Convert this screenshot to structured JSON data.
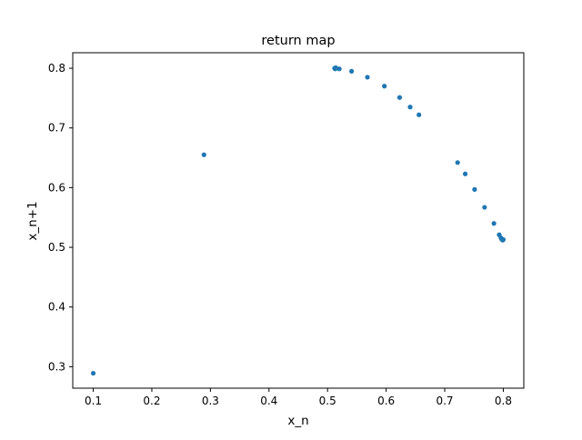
{
  "chart_data": {
    "type": "scatter",
    "title": "return map",
    "xlabel": "x_n",
    "ylabel": "x_n+1",
    "xlim": [
      0.065,
      0.835
    ],
    "ylim": [
      0.264,
      0.826
    ],
    "xticks": [
      0.1,
      0.2,
      0.3,
      0.4,
      0.5,
      0.6,
      0.7,
      0.8
    ],
    "yticks": [
      0.3,
      0.4,
      0.5,
      0.6,
      0.7,
      0.8
    ],
    "xtick_labels": [
      "0.1",
      "0.2",
      "0.3",
      "0.4",
      "0.5",
      "0.6",
      "0.7",
      "0.8"
    ],
    "ytick_labels": [
      "0.3",
      "0.4",
      "0.5",
      "0.6",
      "0.7",
      "0.8"
    ],
    "grid": false,
    "marker_color": "#1f77b4",
    "series": [
      {
        "x": [
          0.1,
          0.289,
          0.512,
          0.513,
          0.514,
          0.52,
          0.541,
          0.568,
          0.597,
          0.623,
          0.641,
          0.656,
          0.722,
          0.735,
          0.751,
          0.768,
          0.784,
          0.793,
          0.796,
          0.797,
          0.798,
          0.799,
          0.8
        ],
        "y": [
          0.289,
          0.655,
          0.8,
          0.799,
          0.801,
          0.799,
          0.795,
          0.785,
          0.77,
          0.751,
          0.735,
          0.722,
          0.642,
          0.623,
          0.597,
          0.567,
          0.54,
          0.521,
          0.516,
          0.514,
          0.513,
          0.512,
          0.513
        ]
      }
    ]
  }
}
